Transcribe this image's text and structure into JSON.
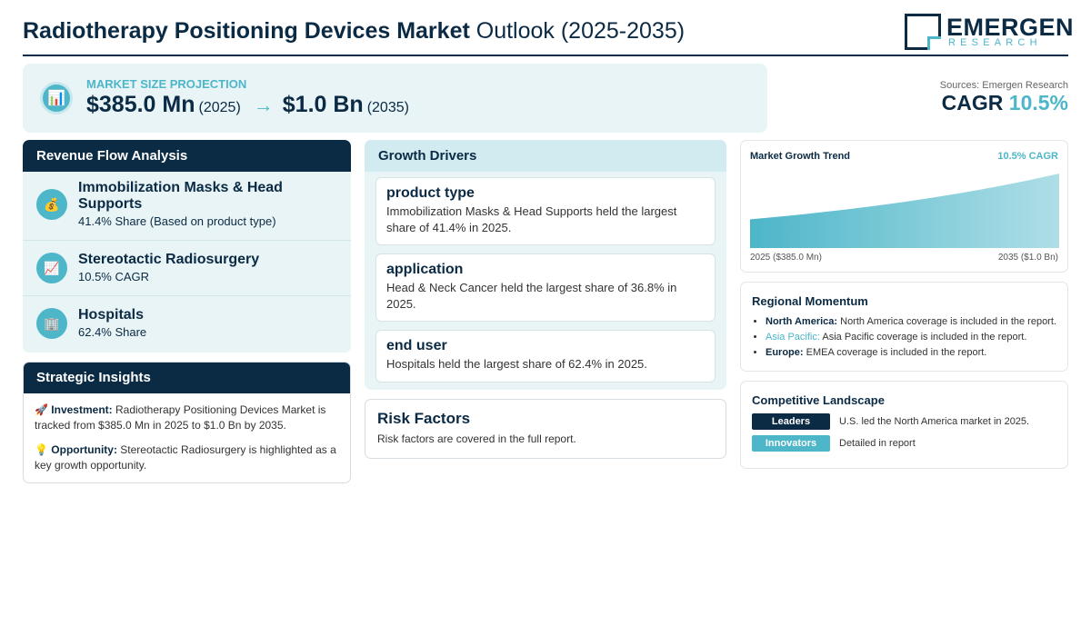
{
  "header": {
    "title_bold": "Radiotherapy Positioning Devices Market",
    "title_rest": " Outlook (2025-2035)",
    "logo_name": "EMERGEN",
    "logo_sub": "RESEARCH"
  },
  "projection": {
    "label": "MARKET SIZE PROJECTION",
    "start_value": "$385.0 Mn",
    "start_year": "(2025)",
    "arrow": "→",
    "end_value": "$1.0 Bn",
    "end_year": "(2035)",
    "icon": "chart-icon"
  },
  "sources": "Sources: Emergen Research",
  "cagr": {
    "label": "CAGR",
    "value": "10.5%"
  },
  "revenue": {
    "title": "Revenue Flow Analysis",
    "items": [
      {
        "title": "Immobilization Masks & Head Supports",
        "sub": "41.4% Share (Based on product type)",
        "icon": "money-bag-icon"
      },
      {
        "title": "Stereotactic Radiosurgery",
        "sub": "10.5% CAGR",
        "icon": "trend-chart-icon"
      },
      {
        "title": "Hospitals",
        "sub": "62.4% Share",
        "icon": "building-icon"
      }
    ]
  },
  "strategic": {
    "title": "Strategic Insights",
    "investment_label": "Investment:",
    "investment_text": " Radiotherapy Positioning Devices Market is tracked from $385.0 Mn in 2025 to $1.0 Bn by 2035.",
    "opportunity_label": "Opportunity:",
    "opportunity_text": " Stereotactic Radiosurgery is highlighted as a key growth opportunity."
  },
  "drivers": {
    "title": "Growth Drivers",
    "cards": [
      {
        "title": "product type",
        "desc": "Immobilization Masks & Head Supports held the largest share of 41.4% in 2025."
      },
      {
        "title": "application",
        "desc": "Head & Neck Cancer held the largest share of 36.8% in 2025."
      },
      {
        "title": "end user",
        "desc": "Hospitals held the largest share of 62.4% in 2025."
      }
    ]
  },
  "risk": {
    "title": "Risk Factors",
    "desc": "Risk factors are covered in the full report."
  },
  "trend": {
    "title": "Market Growth Trend",
    "cagr": "10.5% CAGR",
    "start_label": "2025 ($385.0 Mn)",
    "end_label": "2035 ($1.0 Bn)"
  },
  "chart_data": {
    "type": "area",
    "title": "Market Growth Trend",
    "x": [
      2025,
      2035
    ],
    "series": [
      {
        "values": [
          385.0,
          1000.0
        ]
      }
    ]
  },
  "regional": {
    "title": "Regional Momentum",
    "items": [
      {
        "region": "North America:",
        "text": " North America coverage is included in the report."
      },
      {
        "region": "Asia Pacific:",
        "text": " Asia Pacific coverage is included in the report."
      },
      {
        "region": "Europe:",
        "text": " EMEA coverage is included in the report."
      }
    ]
  },
  "competitive": {
    "title": "Competitive Landscape",
    "rows": [
      {
        "badge": "Leaders",
        "desc": "U.S. led the North America market in 2025.",
        "color": "#0b2a44"
      },
      {
        "badge": "Innovators",
        "desc": "Detailed in report",
        "color": "#4db6c9"
      }
    ]
  },
  "colors": {
    "navy": "#0b2a44",
    "teal": "#4db6c9",
    "panel": "#e8f4f6"
  }
}
